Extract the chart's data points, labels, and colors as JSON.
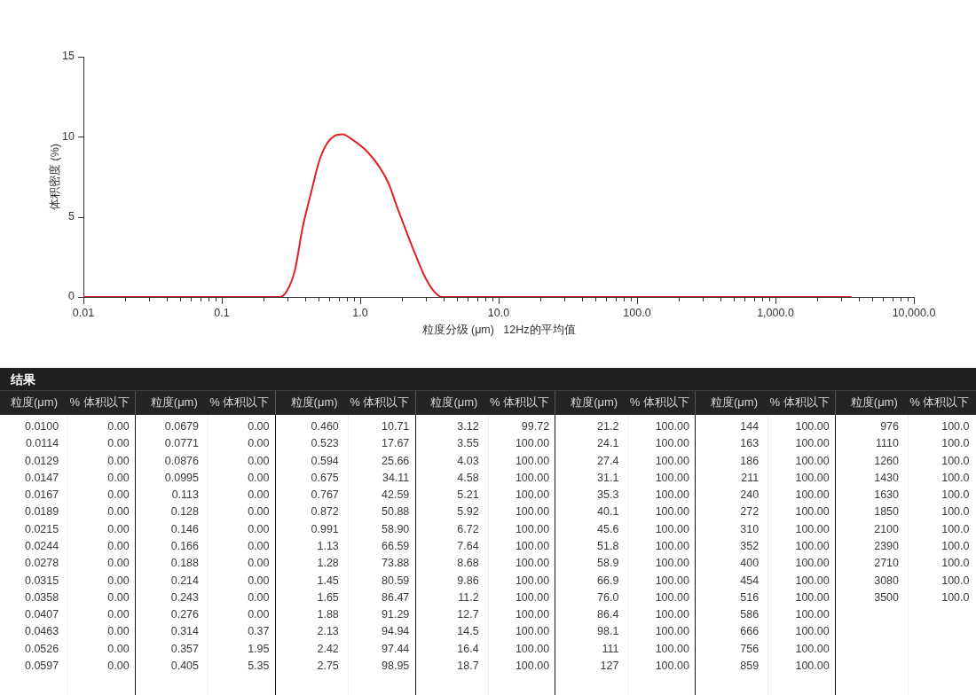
{
  "chart_data": {
    "type": "line",
    "xlabel": "粒度分级 (μm)   12Hz的平均值",
    "ylabel": "体积密度 (%)",
    "log": "x",
    "color": "#e0202a",
    "x": [
      0.01,
      0.265,
      0.307,
      0.339,
      0.383,
      0.444,
      0.502,
      0.568,
      0.652,
      0.744,
      0.885,
      1.13,
      1.38,
      1.6,
      1.85,
      2.14,
      2.49,
      2.88,
      3.34,
      3.87,
      3500
    ],
    "values": [
      0,
      0,
      0.65,
      1.75,
      4.3,
      6.6,
      8.4,
      9.5,
      10.05,
      10.15,
      9.8,
      9.05,
      8.1,
      7.1,
      5.6,
      4.15,
      2.7,
      1.4,
      0.45,
      0,
      0
    ],
    "xlim": [
      0.01,
      10000
    ],
    "ylim": [
      0,
      15
    ],
    "yticks": [
      0,
      5,
      10,
      15
    ],
    "xticks": [
      0.01,
      {
        "value": 0.02,
        "label": null
      },
      {
        "value": 0.03,
        "label": null
      },
      {
        "value": 0.04,
        "label": null
      },
      {
        "value": 0.05,
        "label": null
      },
      {
        "value": 0.06,
        "label": null
      },
      {
        "value": 0.07,
        "label": null
      },
      {
        "value": 0.08,
        "label": null
      },
      {
        "value": 0.09,
        "label": null
      },
      0.1,
      {
        "value": 0.2,
        "label": null
      },
      {
        "value": 0.3,
        "label": null
      },
      {
        "value": 0.4,
        "label": null
      },
      {
        "value": 0.5,
        "label": null
      },
      {
        "value": 0.6,
        "label": null
      },
      {
        "value": 0.7,
        "label": null
      },
      {
        "value": 0.8,
        "label": null
      },
      {
        "value": 0.9,
        "label": null
      },
      {
        "value": 1,
        "label": "1.0"
      },
      {
        "value": 2,
        "label": null
      },
      {
        "value": 3,
        "label": null
      },
      {
        "value": 4,
        "label": null
      },
      {
        "value": 5,
        "label": null
      },
      {
        "value": 6,
        "label": null
      },
      {
        "value": 7,
        "label": null
      },
      {
        "value": 8,
        "label": null
      },
      {
        "value": 9,
        "label": null
      },
      {
        "value": 10,
        "label": "10.0"
      },
      {
        "value": 20,
        "label": null
      },
      {
        "value": 30,
        "label": null
      },
      {
        "value": 40,
        "label": null
      },
      {
        "value": 50,
        "label": null
      },
      {
        "value": 60,
        "label": null
      },
      {
        "value": 70,
        "label": null
      },
      {
        "value": 80,
        "label": null
      },
      {
        "value": 90,
        "label": null
      },
      {
        "value": 100,
        "label": "100.0"
      },
      {
        "value": 200,
        "label": null
      },
      {
        "value": 300,
        "label": null
      },
      {
        "value": 400,
        "label": null
      },
      {
        "value": 500,
        "label": null
      },
      {
        "value": 600,
        "label": null
      },
      {
        "value": 700,
        "label": null
      },
      {
        "value": 800,
        "label": null
      },
      {
        "value": 900,
        "label": null
      },
      {
        "value": 1000,
        "label": "1,000.0"
      },
      {
        "value": 2000,
        "label": null
      },
      {
        "value": 3000,
        "label": null
      },
      {
        "value": 4000,
        "label": null
      },
      {
        "value": 5000,
        "label": null
      },
      {
        "value": 6000,
        "label": null
      },
      {
        "value": 7000,
        "label": null
      },
      {
        "value": 8000,
        "label": null
      },
      {
        "value": 9000,
        "label": null
      },
      {
        "value": 10000,
        "label": "10,000.0"
      }
    ],
    "annotations": [
      "结果",
      "粒度(μm)",
      "% 体积以下",
      "0.0100",
      "0.00",
      "0.0114",
      "0.00",
      "0.0129",
      "0.00",
      "0.0147",
      "0.00",
      "0.0167",
      "0.00",
      "0.0189",
      "0.00",
      "0.0215",
      "0.00",
      "0.0244",
      "0.00",
      "0.0278",
      "0.00",
      "0.0315",
      "0.00",
      "0.0358",
      "0.00",
      "0.0407",
      "0.00",
      "0.0463",
      "0.00",
      "0.0526",
      "0.00",
      "0.0597",
      "0.00",
      "0.0679",
      "0.00",
      "0.0771",
      "0.00",
      "0.0876",
      "0.00",
      "0.0995",
      "0.00",
      "0.113",
      "0.00",
      "0.128",
      "0.00",
      "0.146",
      "0.00",
      "0.166",
      "0.00",
      "0.188",
      "0.00",
      "0.214",
      "0.00",
      "0.243",
      "0.00",
      "0.276",
      "0.00",
      "0.314",
      "0.37",
      "0.357",
      "1.95",
      "0.405",
      "5.35",
      "0.460",
      "10.71",
      "0.523",
      "17.67",
      "0.594",
      "25.66",
      "0.675",
      "34.11",
      "0.767",
      "42.59",
      "0.872",
      "50.88",
      "0.991",
      "58.90",
      "1.13",
      "66.59",
      "1.28",
      "73.88",
      "1.45",
      "80.59",
      "1.65",
      "86.47",
      "1.88",
      "91.29",
      "2.13",
      "94.94",
      "2.42",
      "97.44",
      "2.75",
      "98.95",
      "3.12",
      "99.72",
      "3.55",
      "100.00",
      "4.03",
      "100.00",
      "4.58",
      "100.00",
      "5.21",
      "100.00",
      "5.92",
      "100.00",
      "6.72",
      "100.00",
      "7.64",
      "100.00",
      "8.68",
      "100.00",
      "9.86",
      "100.00",
      "11.2",
      "100.00",
      "12.7",
      "100.00",
      "14.5",
      "100.00",
      "16.4",
      "100.00",
      "18.7",
      "100.00",
      "21.2",
      "100.00",
      "24.1",
      "100.00",
      "27.4",
      "100.00",
      "31.1",
      "100.00",
      "35.3",
      "100.00",
      "40.1",
      "100.00",
      "45.6",
      "100.00",
      "51.8",
      "100.00",
      "58.9",
      "100.00",
      "66.9",
      "100.00",
      "76.0",
      "100.00",
      "86.4",
      "100.00",
      "98.1",
      "100.00",
      "111",
      "100.00",
      "127",
      "100.00",
      "144",
      "100.00",
      "163",
      "100.00",
      "186",
      "100.00",
      "211",
      "100.00",
      "240",
      "100.00",
      "272",
      "100.00",
      "310",
      "100.00",
      "352",
      "100.00",
      "400",
      "100.00",
      "454",
      "100.00",
      "516",
      "100.00",
      "586",
      "100.00",
      "666",
      "100.00",
      "756",
      "100.00",
      "859",
      "100.00",
      "976",
      "100.0",
      "1110",
      "100.0",
      "1260",
      "100.0",
      "1430",
      "100.0",
      "1630",
      "100.0",
      "1850",
      "100.0",
      "2100",
      "100.0",
      "2390",
      "100.0",
      "2710",
      "100.0",
      "3080",
      "100.0",
      "3500",
      "100.0"
    ]
  }
}
